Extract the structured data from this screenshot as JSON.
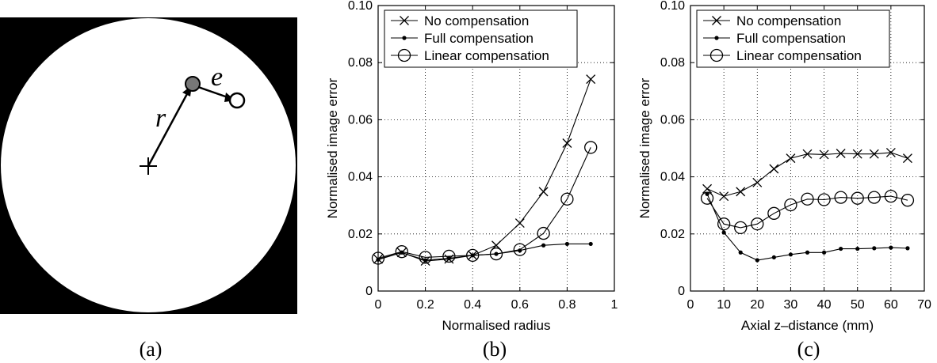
{
  "panels": {
    "a": {
      "label": "(a)",
      "r_label": "r",
      "e_label": "e"
    },
    "b": {
      "label": "(b)"
    },
    "c": {
      "label": "(c)"
    }
  },
  "chart_data": [
    {
      "type": "line",
      "xlabel": "Normalised radius",
      "ylabel": "Normalised image error",
      "xlim": [
        0,
        1
      ],
      "ylim": [
        0,
        0.1
      ],
      "xticks": [
        0,
        0.2,
        0.4,
        0.6,
        0.8,
        1
      ],
      "xtick_labels": [
        "0",
        "0.2",
        "0.4",
        "0.6",
        "0.8",
        "1"
      ],
      "yticks": [
        0,
        0.02,
        0.04,
        0.06,
        0.08,
        0.1
      ],
      "ytick_labels": [
        "0",
        "0.02",
        "0.04",
        "0.06",
        "0.08",
        "0.10"
      ],
      "grid": true,
      "legend_position": "top-left",
      "series": [
        {
          "name": "No compensation",
          "marker": "x",
          "x": [
            0,
            0.1,
            0.2,
            0.3,
            0.4,
            0.5,
            0.6,
            0.7,
            0.8,
            0.9
          ],
          "y": [
            0.0112,
            0.0135,
            0.0105,
            0.0112,
            0.0125,
            0.016,
            0.0238,
            0.0348,
            0.0518,
            0.0742
          ]
        },
        {
          "name": "Full compensation",
          "marker": "dot",
          "x": [
            0,
            0.1,
            0.2,
            0.3,
            0.4,
            0.5,
            0.6,
            0.7,
            0.8,
            0.9
          ],
          "y": [
            0.011,
            0.0135,
            0.0108,
            0.0115,
            0.0125,
            0.013,
            0.0142,
            0.016,
            0.0165,
            0.0165
          ]
        },
        {
          "name": "Linear compensation",
          "marker": "circle",
          "x": [
            0,
            0.1,
            0.2,
            0.3,
            0.4,
            0.5,
            0.6,
            0.7,
            0.8,
            0.9
          ],
          "y": [
            0.0115,
            0.0138,
            0.0118,
            0.0122,
            0.0125,
            0.013,
            0.0145,
            0.0202,
            0.0322,
            0.0503
          ]
        }
      ]
    },
    {
      "type": "line",
      "xlabel": "Axial z–distance (mm)",
      "ylabel": "Normalised image error",
      "xlim": [
        0,
        70
      ],
      "ylim": [
        0,
        0.1
      ],
      "xticks": [
        0,
        10,
        20,
        30,
        40,
        50,
        60,
        70
      ],
      "xtick_labels": [
        "0",
        "10",
        "20",
        "30",
        "40",
        "50",
        "60",
        "70"
      ],
      "yticks": [
        0,
        0.02,
        0.04,
        0.06,
        0.08,
        0.1
      ],
      "ytick_labels": [
        "0",
        "0.02",
        "0.04",
        "0.06",
        "0.08",
        "0.10"
      ],
      "grid": true,
      "legend_position": "top-left",
      "series": [
        {
          "name": "No compensation",
          "marker": "x",
          "x": [
            5,
            10,
            15,
            20,
            25,
            30,
            35,
            40,
            45,
            50,
            55,
            60,
            65
          ],
          "y": [
            0.0358,
            0.0332,
            0.0348,
            0.038,
            0.0428,
            0.0465,
            0.048,
            0.0478,
            0.0482,
            0.048,
            0.048,
            0.0485,
            0.0465
          ]
        },
        {
          "name": "Full compensation",
          "marker": "dot",
          "x": [
            5,
            10,
            15,
            20,
            25,
            30,
            35,
            40,
            45,
            50,
            55,
            60,
            65
          ],
          "y": [
            0.034,
            0.0205,
            0.0135,
            0.0108,
            0.0118,
            0.0128,
            0.0135,
            0.0135,
            0.0148,
            0.0148,
            0.015,
            0.0152,
            0.015
          ]
        },
        {
          "name": "Linear compensation",
          "marker": "circle",
          "x": [
            5,
            10,
            15,
            20,
            25,
            30,
            35,
            40,
            45,
            50,
            55,
            60,
            65
          ],
          "y": [
            0.0325,
            0.0235,
            0.0222,
            0.0235,
            0.0272,
            0.0302,
            0.0322,
            0.032,
            0.0328,
            0.0325,
            0.0328,
            0.0332,
            0.0318
          ]
        }
      ]
    }
  ]
}
